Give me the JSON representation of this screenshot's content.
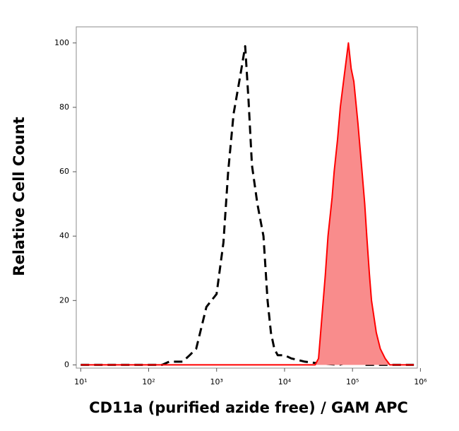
{
  "chart_data": {
    "type": "histogram-overlay",
    "x_label": "CD11a (purified azide free) / GAM APC",
    "y_label": "Relative Cell Count",
    "xscale": "log",
    "xlim": [
      8.6,
      900000
    ],
    "ylim": [
      -1,
      105
    ],
    "xticks": [
      {
        "value": 10,
        "label": "10¹"
      },
      {
        "value": 100,
        "label": "10²"
      },
      {
        "value": 1000,
        "label": "10³"
      },
      {
        "value": 10000,
        "label": "10⁴"
      },
      {
        "value": 100000,
        "label": "10⁵"
      },
      {
        "value": 1000000,
        "label": "10⁶"
      }
    ],
    "yticks": [
      0,
      20,
      40,
      60,
      80,
      100
    ],
    "series": [
      {
        "color": "#000000",
        "dashed": true,
        "filled": false,
        "x": [
          10,
          100,
          158,
          200,
          316,
          400,
          500,
          708,
          1000,
          1259,
          1479,
          1778,
          2239,
          2630,
          2951,
          3311,
          3981,
          4898,
          5623,
          6310,
          7079,
          7943,
          10000,
          12589,
          19953,
          31623,
          63096,
          100000,
          158489,
          800000
        ],
        "values": [
          0,
          0,
          0,
          1,
          1,
          3,
          5,
          18,
          22,
          38,
          60,
          78,
          90,
          99,
          82,
          62,
          50,
          40,
          20,
          10,
          5,
          3,
          3,
          2,
          1,
          0.5,
          0,
          1,
          0,
          0
        ]
      },
      {
        "color": "#ff0000",
        "fill": "#f98c8c",
        "dashed": false,
        "filled": true,
        "x": [
          10,
          28184,
          31623,
          35481,
          39811,
          43652,
          50119,
          53703,
          60256,
          66069,
          75858,
          87096,
          95499,
          104713,
          120226,
          138038,
          151356,
          162181,
          177828,
          190546,
          223872,
          257040,
          301995,
          354813,
          800000
        ],
        "values": [
          0,
          0,
          2,
          15,
          28,
          40,
          52,
          60,
          70,
          80,
          90,
          100,
          92,
          88,
          75,
          60,
          50,
          40,
          28,
          20,
          10,
          5,
          2,
          0,
          0
        ]
      }
    ]
  }
}
